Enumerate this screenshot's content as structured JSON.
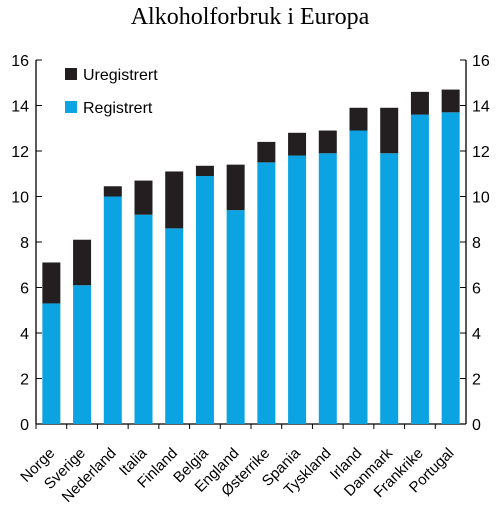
{
  "chart_data": {
    "type": "bar",
    "stacked": true,
    "title": "Alkoholforbruk i Europa",
    "categories": [
      "Norge",
      "Sverige",
      "Nederland",
      "Italia",
      "Finland",
      "Belgia",
      "England",
      "Østerrike",
      "Spania",
      "Tyskland",
      "Irland",
      "Danmark",
      "Frankrike",
      "Portugal"
    ],
    "series": [
      {
        "name": "Registrert",
        "color": "#0BA3E2",
        "values": [
          5.3,
          6.1,
          10.0,
          9.2,
          8.6,
          10.9,
          9.4,
          11.5,
          11.8,
          11.9,
          12.9,
          11.9,
          13.6,
          13.7
        ]
      },
      {
        "name": "Uregistrert",
        "color": "#231F20",
        "values": [
          1.8,
          2.0,
          0.45,
          1.5,
          2.5,
          0.45,
          2.0,
          0.9,
          1.0,
          1.0,
          1.0,
          2.0,
          1.0,
          1.0
        ]
      }
    ],
    "legend_order": [
      "Uregistrert",
      "Registrert"
    ],
    "ylim": [
      0,
      16
    ],
    "yticks": [
      "0",
      "2",
      "4",
      "6",
      "8",
      "10",
      "12",
      "14",
      "16"
    ],
    "ytick_values": [
      0,
      2,
      4,
      6,
      8,
      10,
      12,
      14,
      16
    ],
    "xlabel": "",
    "ylabel": "",
    "grid": false,
    "legend_position": "top-left",
    "axis_color": "#000000"
  }
}
